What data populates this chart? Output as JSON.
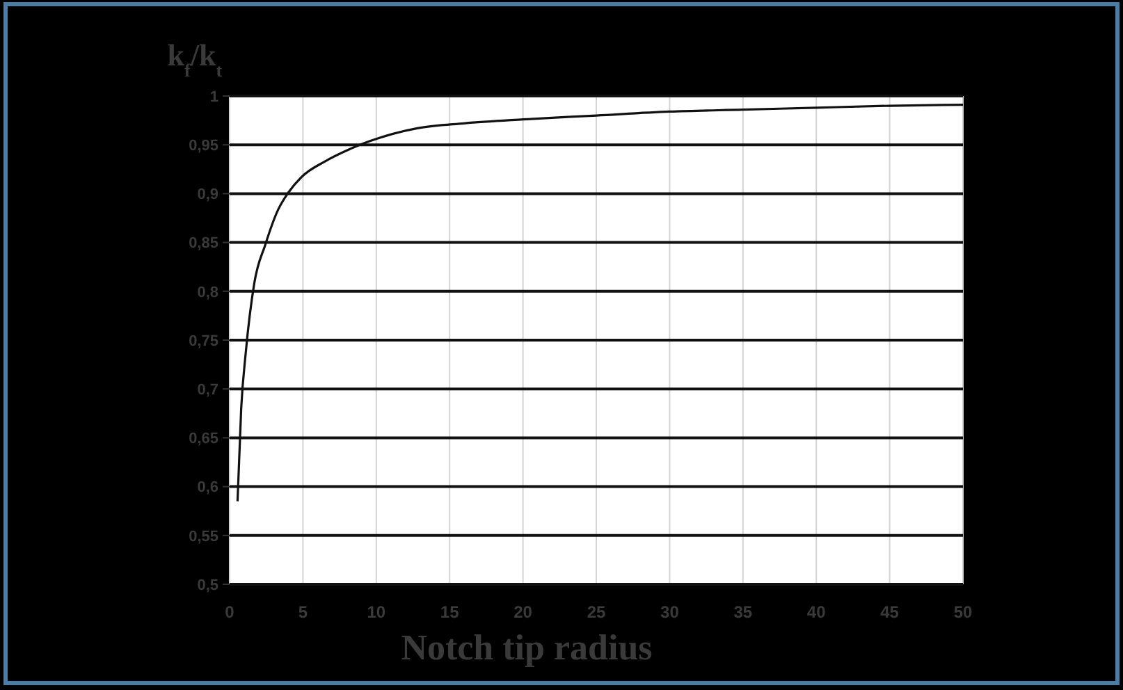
{
  "chart_data": {
    "type": "line",
    "title": "k$_{f}$/k$_{t}$",
    "xlabel": "Notch tip radius",
    "series": [
      {
        "color": "#111111",
        "x": [
          0.54,
          0.79,
          1.1,
          1.68,
          2.44,
          3.32,
          4.0,
          4.9,
          6.5,
          8.1,
          9.6,
          12.8,
          16,
          20,
          25,
          30,
          35,
          40,
          45,
          50
        ],
        "values": [
          0.585,
          0.68,
          0.737,
          0.808,
          0.848,
          0.884,
          0.901,
          0.917,
          0.933,
          0.945,
          0.954,
          0.967,
          0.972,
          0.976,
          0.98,
          0.984,
          0.986,
          0.988,
          0.99,
          0.991
        ]
      }
    ],
    "xlim": [
      0,
      50
    ],
    "xticks": [
      0,
      5,
      10,
      15,
      20,
      25,
      30,
      35,
      40,
      45,
      50
    ],
    "ylim": [
      0.5,
      1
    ],
    "yticks": [
      {
        "value": 0.5,
        "label": "0,5"
      },
      {
        "value": 0.55,
        "label": "0,55"
      },
      {
        "value": 0.6,
        "label": "0,6"
      },
      {
        "value": 0.65,
        "label": "0,65"
      },
      {
        "value": 0.7,
        "label": "0,7"
      },
      {
        "value": 0.75,
        "label": "0,75"
      },
      {
        "value": 0.8,
        "label": "0,8"
      },
      {
        "value": 0.85,
        "label": "0,85"
      },
      {
        "value": 0.9,
        "label": "0,9"
      },
      {
        "value": 0.95,
        "label": "0,95"
      },
      {
        "value": 1,
        "label": "1"
      }
    ],
    "grid": true,
    "marker": "none",
    "line_style": "solid"
  }
}
